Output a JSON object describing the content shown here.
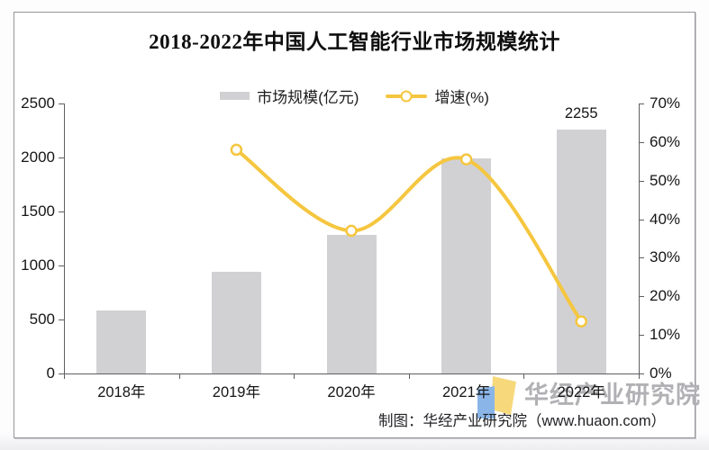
{
  "title": "2018-2022年中国人工智能行业市场规模统计",
  "legend": {
    "bar_label": "市场规模(亿元)",
    "line_label": "增速(%)"
  },
  "chart_data": {
    "type": "bar",
    "combo": "bar+line",
    "categories": [
      "2018年",
      "2019年",
      "2020年",
      "2021年",
      "2022年"
    ],
    "series": [
      {
        "name": "市场规模(亿元)",
        "type": "bar",
        "axis": "left",
        "values": [
          580,
          940,
          1280,
          1990,
          2255
        ],
        "labels": [
          null,
          null,
          null,
          null,
          "2255"
        ]
      },
      {
        "name": "增速(%)",
        "type": "line",
        "axis": "right",
        "values": [
          null,
          58,
          37,
          55.5,
          13.5
        ]
      }
    ],
    "left_axis": {
      "min": 0,
      "max": 2500,
      "ticks": [
        "2500",
        "2000",
        "1500",
        "1000",
        "500",
        "0"
      ]
    },
    "right_axis": {
      "min": 0,
      "max": 70,
      "ticks": [
        "70%",
        "60%",
        "50%",
        "40%",
        "30%",
        "20%",
        "10%",
        "0%"
      ]
    },
    "grid": false,
    "legend_position": "top"
  },
  "footer": {
    "attribution": "制图：华经产业研究院（www.huaon.com）",
    "watermark": "华经产业研究院"
  },
  "colors": {
    "bar": "#d1d1d4",
    "line": "#f5c63f",
    "marker_fill": "#ffffff",
    "watermark": "#b1b1b5",
    "axis": "#5f5f63",
    "logo_blue": "#8ab5e8",
    "logo_yellow": "#f7d97c"
  }
}
